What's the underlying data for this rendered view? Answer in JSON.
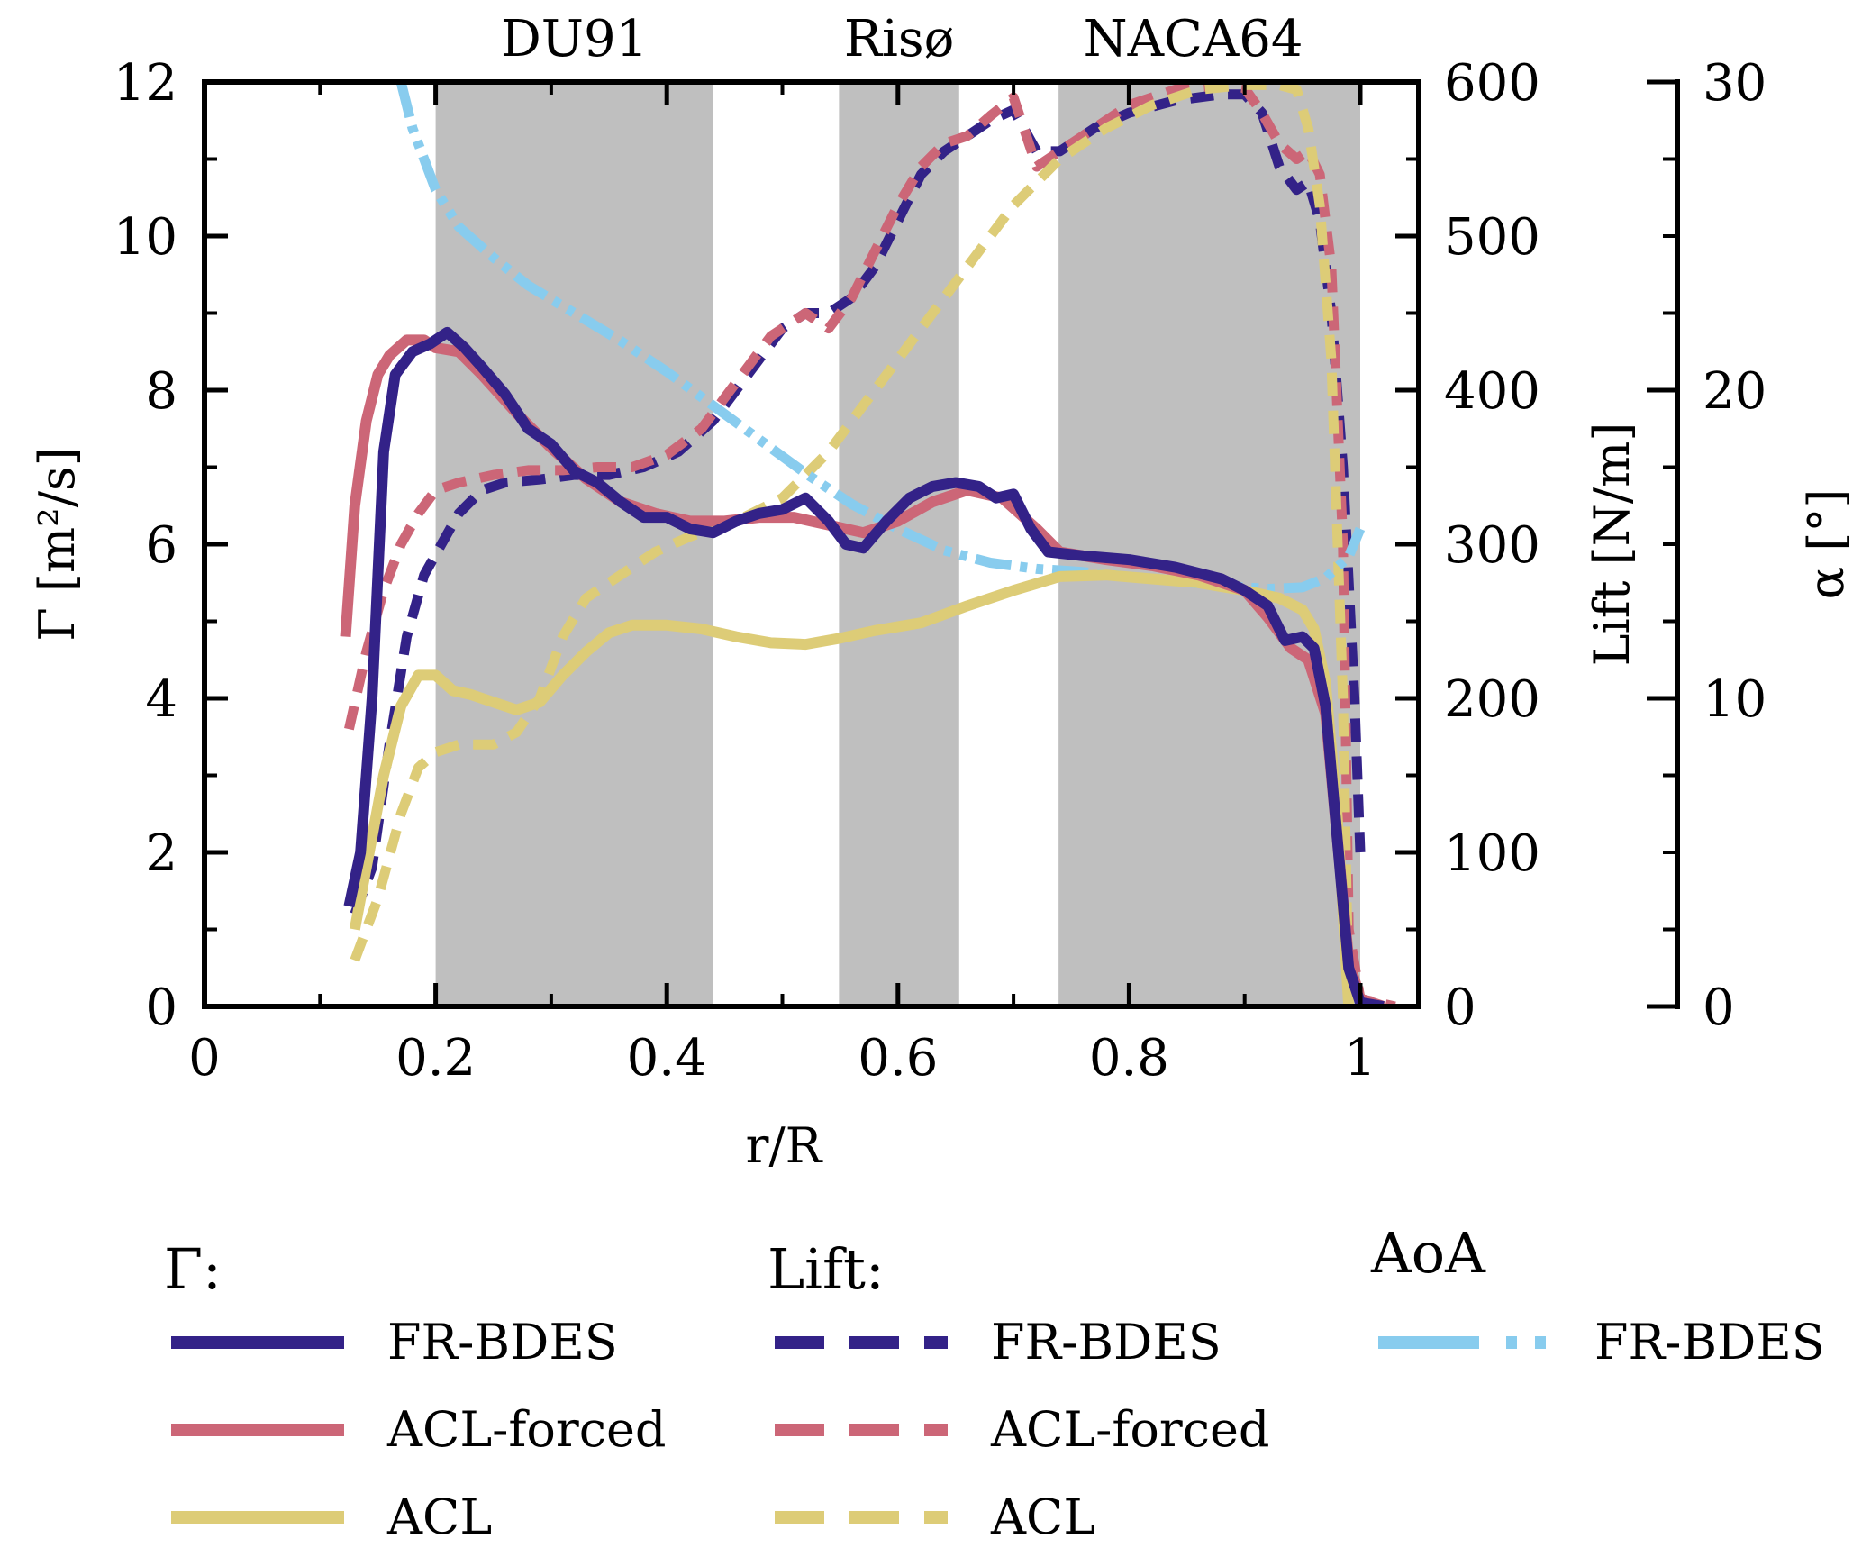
{
  "chart_data": {
    "type": "line",
    "xlabel": "r/R",
    "ylabel_left": "Γ  [m²/s]",
    "ylabel_right1": "Lift [N/m]",
    "ylabel_right2": "α  [°]",
    "xlim": [
      0,
      1.05
    ],
    "ylim_left": [
      0,
      12
    ],
    "ylim_right1": [
      0,
      600
    ],
    "ylim_right2": [
      0,
      30
    ],
    "x_ticks": [
      {
        "value": 0,
        "label": "0"
      },
      {
        "value": 0.2,
        "label": "0.2"
      },
      {
        "value": 0.4,
        "label": "0.4"
      },
      {
        "value": 0.6,
        "label": "0.6"
      },
      {
        "value": 0.8,
        "label": "0.8"
      },
      {
        "value": 1.0,
        "label": "1"
      }
    ],
    "x_minor_ticks": [
      0.1,
      0.3,
      0.5,
      0.7,
      0.9
    ],
    "y_left_ticks": [
      {
        "value": 0,
        "label": "0"
      },
      {
        "value": 2,
        "label": "2"
      },
      {
        "value": 4,
        "label": "4"
      },
      {
        "value": 6,
        "label": "6"
      },
      {
        "value": 8,
        "label": "8"
      },
      {
        "value": 10,
        "label": "10"
      },
      {
        "value": 12,
        "label": "12"
      }
    ],
    "y_left_minor_ticks": [
      1,
      3,
      5,
      7,
      9,
      11
    ],
    "y_right1_ticks": [
      {
        "value": 0,
        "label": "0"
      },
      {
        "value": 100,
        "label": "100"
      },
      {
        "value": 200,
        "label": "200"
      },
      {
        "value": 300,
        "label": "300"
      },
      {
        "value": 400,
        "label": "400"
      },
      {
        "value": 500,
        "label": "500"
      },
      {
        "value": 600,
        "label": "600"
      }
    ],
    "y_right1_minor_ticks": [
      50,
      150,
      250,
      350,
      450,
      550
    ],
    "y_right2_ticks": [
      {
        "value": 0,
        "label": "0"
      },
      {
        "value": 10,
        "label": "10"
      },
      {
        "value": 20,
        "label": "20"
      },
      {
        "value": 30,
        "label": "30"
      }
    ],
    "y_right2_minor_ticks": [
      2.5,
      5,
      7.5,
      12.5,
      15,
      17.5,
      22.5,
      25,
      27.5
    ],
    "shaded_regions": [
      {
        "label": "DU91",
        "x0": 0.2,
        "x1": 0.44
      },
      {
        "label": "Risø",
        "x0": 0.549,
        "x1": 0.653
      },
      {
        "label": "NACA64",
        "x0": 0.739,
        "x1": 1.0
      }
    ],
    "shade_color": "#bfbfbf",
    "series": [
      {
        "name": "Γ FR-BDES",
        "group": "gamma",
        "axis": "left",
        "style": "solid",
        "color": "#332288",
        "x": [
          0.125,
          0.135,
          0.145,
          0.155,
          0.165,
          0.18,
          0.195,
          0.21,
          0.225,
          0.24,
          0.26,
          0.28,
          0.3,
          0.32,
          0.34,
          0.36,
          0.38,
          0.4,
          0.42,
          0.44,
          0.46,
          0.48,
          0.5,
          0.52,
          0.54,
          0.555,
          0.57,
          0.59,
          0.61,
          0.63,
          0.65,
          0.67,
          0.685,
          0.7,
          0.715,
          0.73,
          0.76,
          0.8,
          0.84,
          0.88,
          0.9,
          0.92,
          0.935,
          0.95,
          0.96,
          0.97,
          0.98,
          0.99,
          1.0,
          1.02
        ],
        "y": [
          1.3,
          2.0,
          4.0,
          7.2,
          8.2,
          8.5,
          8.6,
          8.75,
          8.55,
          8.3,
          7.95,
          7.5,
          7.3,
          6.95,
          6.8,
          6.55,
          6.35,
          6.35,
          6.2,
          6.15,
          6.3,
          6.4,
          6.45,
          6.6,
          6.3,
          6.0,
          5.95,
          6.3,
          6.6,
          6.75,
          6.8,
          6.75,
          6.6,
          6.65,
          6.2,
          5.9,
          5.85,
          5.8,
          5.7,
          5.55,
          5.4,
          5.2,
          4.75,
          4.8,
          4.65,
          3.9,
          2.2,
          0.5,
          0.05,
          0.0
        ]
      },
      {
        "name": "Γ ACL-forced",
        "group": "gamma",
        "axis": "left",
        "style": "solid",
        "color": "#CC6677",
        "x": [
          0.122,
          0.13,
          0.14,
          0.15,
          0.16,
          0.175,
          0.19,
          0.2,
          0.22,
          0.24,
          0.27,
          0.3,
          0.33,
          0.36,
          0.39,
          0.42,
          0.45,
          0.48,
          0.51,
          0.54,
          0.57,
          0.6,
          0.63,
          0.66,
          0.69,
          0.72,
          0.74,
          0.78,
          0.82,
          0.86,
          0.9,
          0.92,
          0.94,
          0.955,
          0.97,
          0.98,
          0.99,
          1.0,
          1.02
        ],
        "y": [
          4.8,
          6.5,
          7.6,
          8.2,
          8.45,
          8.65,
          8.65,
          8.55,
          8.5,
          8.2,
          7.7,
          7.25,
          6.85,
          6.55,
          6.4,
          6.3,
          6.3,
          6.35,
          6.35,
          6.25,
          6.15,
          6.3,
          6.55,
          6.7,
          6.6,
          6.2,
          5.9,
          5.8,
          5.72,
          5.6,
          5.4,
          5.05,
          4.65,
          4.5,
          3.8,
          2.2,
          0.6,
          0.1,
          0.0
        ]
      },
      {
        "name": "Γ ACL",
        "group": "gamma",
        "axis": "left",
        "style": "solid",
        "color": "#DDCC77",
        "x": [
          0.13,
          0.14,
          0.155,
          0.17,
          0.185,
          0.2,
          0.215,
          0.23,
          0.25,
          0.27,
          0.29,
          0.31,
          0.33,
          0.35,
          0.37,
          0.4,
          0.43,
          0.46,
          0.49,
          0.52,
          0.55,
          0.58,
          0.62,
          0.66,
          0.7,
          0.74,
          0.78,
          0.82,
          0.86,
          0.9,
          0.93,
          0.95,
          0.96,
          0.97,
          0.98,
          0.99
        ],
        "y": [
          1.0,
          1.8,
          3.0,
          3.9,
          4.3,
          4.3,
          4.1,
          4.05,
          3.95,
          3.85,
          3.95,
          4.3,
          4.6,
          4.85,
          4.95,
          4.95,
          4.9,
          4.8,
          4.72,
          4.7,
          4.78,
          4.88,
          4.98,
          5.2,
          5.4,
          5.58,
          5.6,
          5.55,
          5.5,
          5.4,
          5.3,
          5.15,
          4.9,
          4.2,
          2.5,
          0.0
        ]
      },
      {
        "name": "Lift FR-BDES",
        "group": "lift",
        "axis": "right1",
        "style": "dashed",
        "color": "#332288",
        "x": [
          0.13,
          0.145,
          0.16,
          0.175,
          0.19,
          0.205,
          0.22,
          0.24,
          0.26,
          0.29,
          0.32,
          0.35,
          0.38,
          0.41,
          0.44,
          0.46,
          0.48,
          0.5,
          0.52,
          0.54,
          0.56,
          0.58,
          0.6,
          0.62,
          0.64,
          0.66,
          0.68,
          0.7,
          0.72,
          0.74,
          0.77,
          0.8,
          0.84,
          0.88,
          0.9,
          0.915,
          0.93,
          0.945,
          0.955,
          0.965,
          0.975,
          0.985,
          0.995,
          1.0
        ],
        "y": [
          60,
          90,
          170,
          240,
          280,
          300,
          320,
          335,
          340,
          342,
          345,
          345,
          350,
          360,
          380,
          400,
          420,
          440,
          450,
          450,
          460,
          480,
          510,
          540,
          555,
          565,
          575,
          582,
          555,
          555,
          570,
          580,
          588,
          592,
          592,
          580,
          545,
          530,
          535,
          510,
          450,
          350,
          200,
          100
        ]
      },
      {
        "name": "Lift ACL-forced",
        "group": "lift",
        "axis": "right1",
        "style": "dashed",
        "color": "#CC6677",
        "x": [
          0.125,
          0.14,
          0.155,
          0.17,
          0.185,
          0.2,
          0.22,
          0.25,
          0.28,
          0.31,
          0.34,
          0.37,
          0.4,
          0.43,
          0.46,
          0.49,
          0.52,
          0.54,
          0.56,
          0.58,
          0.6,
          0.62,
          0.64,
          0.66,
          0.68,
          0.7,
          0.72,
          0.74,
          0.77,
          0.8,
          0.84,
          0.88,
          0.9,
          0.915,
          0.93,
          0.945,
          0.955,
          0.965,
          0.975,
          0.985,
          0.99,
          1.0,
          1.03
        ],
        "y": [
          180,
          230,
          270,
          300,
          320,
          335,
          340,
          345,
          348,
          348,
          350,
          350,
          358,
          375,
          405,
          435,
          450,
          440,
          460,
          490,
          520,
          545,
          560,
          565,
          578,
          590,
          545,
          555,
          570,
          585,
          595,
          598,
          596,
          580,
          560,
          550,
          555,
          540,
          480,
          300,
          50,
          5,
          0
        ]
      },
      {
        "name": "Lift ACL",
        "group": "lift",
        "axis": "right1",
        "style": "dashed",
        "color": "#DDCC77",
        "x": [
          0.13,
          0.15,
          0.17,
          0.185,
          0.2,
          0.22,
          0.25,
          0.27,
          0.29,
          0.31,
          0.33,
          0.36,
          0.39,
          0.42,
          0.46,
          0.5,
          0.54,
          0.58,
          0.62,
          0.66,
          0.7,
          0.74,
          0.78,
          0.82,
          0.86,
          0.9,
          0.93,
          0.945,
          0.955,
          0.965,
          0.975,
          0.985,
          0.99
        ],
        "y": [
          30,
          70,
          125,
          155,
          165,
          170,
          170,
          178,
          200,
          240,
          265,
          280,
          295,
          305,
          315,
          330,
          360,
          400,
          440,
          480,
          520,
          550,
          570,
          585,
          595,
          598,
          598,
          595,
          570,
          520,
          420,
          200,
          0
        ]
      },
      {
        "name": "AoA FR-BDES",
        "group": "aoa",
        "axis": "right2",
        "style": "dashdotdot",
        "color": "#88CCEE",
        "x": [
          0.17,
          0.18,
          0.19,
          0.2,
          0.22,
          0.25,
          0.28,
          0.32,
          0.36,
          0.4,
          0.44,
          0.48,
          0.52,
          0.56,
          0.6,
          0.64,
          0.68,
          0.72,
          0.76,
          0.8,
          0.84,
          0.88,
          0.92,
          0.95,
          0.97,
          0.99,
          1.0
        ],
        "y": [
          30,
          28.5,
          27.5,
          26.5,
          25.3,
          24.3,
          23.4,
          22.5,
          21.6,
          20.6,
          19.5,
          18.4,
          17.3,
          16.3,
          15.5,
          14.8,
          14.4,
          14.2,
          14.1,
          13.95,
          13.8,
          13.65,
          13.55,
          13.6,
          13.9,
          14.6,
          15.5
        ]
      }
    ],
    "legend": {
      "position": "below",
      "groups": [
        {
          "title": "Γ:",
          "entries": [
            {
              "label": "FR-BDES",
              "color": "#332288",
              "style": "solid"
            },
            {
              "label": "ACL-forced",
              "color": "#CC6677",
              "style": "solid"
            },
            {
              "label": "ACL",
              "color": "#DDCC77",
              "style": "solid"
            }
          ]
        },
        {
          "title": "Lift:",
          "entries": [
            {
              "label": "FR-BDES",
              "color": "#332288",
              "style": "dashed"
            },
            {
              "label": "ACL-forced",
              "color": "#CC6677",
              "style": "dashed"
            },
            {
              "label": "ACL",
              "color": "#DDCC77",
              "style": "dashed"
            }
          ]
        },
        {
          "title": "AoA",
          "entries": [
            {
              "label": "FR-BDES",
              "color": "#88CCEE",
              "style": "dashdotdot"
            }
          ]
        }
      ]
    }
  }
}
